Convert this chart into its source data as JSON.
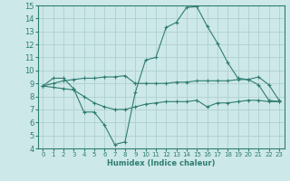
{
  "xlabel": "Humidex (Indice chaleur)",
  "background_color": "#cde8e8",
  "line_color": "#2e7d72",
  "grid_color": "#aed0d0",
  "xlim": [
    -0.5,
    23.5
  ],
  "ylim": [
    4,
    15
  ],
  "xticks": [
    0,
    1,
    2,
    3,
    4,
    5,
    6,
    7,
    8,
    9,
    10,
    11,
    12,
    13,
    14,
    15,
    16,
    17,
    18,
    19,
    20,
    21,
    22,
    23
  ],
  "yticks": [
    4,
    5,
    6,
    7,
    8,
    9,
    10,
    11,
    12,
    13,
    14,
    15
  ],
  "line1_x": [
    0,
    1,
    2,
    3,
    4,
    5,
    6,
    7,
    8,
    9,
    10,
    11,
    12,
    13,
    14,
    15,
    16,
    17,
    18,
    19,
    20,
    21,
    22,
    23
  ],
  "line1_y": [
    8.8,
    9.4,
    9.4,
    8.6,
    6.8,
    6.8,
    5.8,
    4.3,
    4.5,
    8.3,
    10.8,
    11.0,
    13.3,
    13.7,
    14.85,
    14.9,
    13.4,
    12.1,
    10.6,
    9.4,
    9.3,
    9.5,
    8.9,
    7.7
  ],
  "line2_x": [
    0,
    1,
    2,
    3,
    4,
    5,
    6,
    7,
    8,
    9,
    10,
    11,
    12,
    13,
    14,
    15,
    16,
    17,
    18,
    19,
    20,
    21,
    22,
    23
  ],
  "line2_y": [
    8.8,
    9.0,
    9.2,
    9.3,
    9.4,
    9.4,
    9.5,
    9.5,
    9.6,
    9.0,
    9.0,
    9.0,
    9.0,
    9.1,
    9.1,
    9.2,
    9.2,
    9.2,
    9.2,
    9.3,
    9.3,
    8.9,
    7.7,
    7.6
  ],
  "line3_x": [
    0,
    1,
    2,
    3,
    4,
    5,
    6,
    7,
    8,
    9,
    10,
    11,
    12,
    13,
    14,
    15,
    16,
    17,
    18,
    19,
    20,
    21,
    22,
    23
  ],
  "line3_y": [
    8.8,
    8.7,
    8.6,
    8.5,
    8.0,
    7.5,
    7.2,
    7.0,
    7.0,
    7.2,
    7.4,
    7.5,
    7.6,
    7.6,
    7.6,
    7.7,
    7.2,
    7.5,
    7.5,
    7.6,
    7.7,
    7.7,
    7.6,
    7.6
  ]
}
